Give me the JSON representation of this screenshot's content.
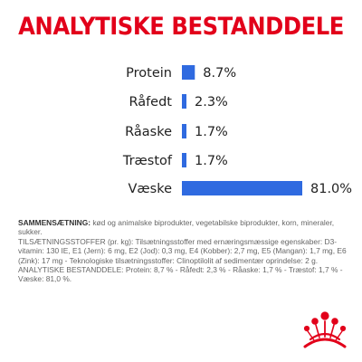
{
  "title": "ANALYTISKE BESTANDDELE",
  "chart_data": {
    "type": "bar",
    "orientation": "horizontal",
    "categories": [
      "Protein",
      "Råfedt",
      "Råaske",
      "Træstof",
      "Væske"
    ],
    "values": [
      8.7,
      2.3,
      1.7,
      1.7,
      81.0
    ],
    "value_labels": [
      "8.7%",
      "2.3%",
      "1.7%",
      "1.7%",
      "81.0%"
    ],
    "unit": "%",
    "xlim": [
      0,
      81.0
    ],
    "grid": false,
    "legend": "none",
    "bar_color": "#2f6ae0"
  },
  "composition": {
    "sammensaetning_label": "SAMMENSÆTNING:",
    "sammensaetning_text": " kød og animalske biprodukter, vegetabilske biprodukter, korn, mineraler, sukker.",
    "tilsaetning_text": "TILSÆTNINGSSTOFFER (pr. kg): Tilsætningsstoffer med ernæringsmæssige egenskaber: D3-vitamin: 130 IE, E1 (Jern): 6 mg, E2 (Jod): 0,3 mg, E4 (Kobber): 2,7 mg, E5 (Mangan): 1,7 mg, E6 (Zink): 17 mg - Teknologiske tilsætningsstoffer: Clinoptilolit af sedimentær oprindelse: 2 g.",
    "analytiske_text": "ANALYTISKE BESTANDDELE: Protein: 8,7 % - Råfedt: 2,3 % - Råaske: 1,7 % - Træstof: 1,7 % - Væske: 81,0 %."
  },
  "colors": {
    "title": "#e2001a",
    "bar": "#2f6ae0",
    "logo": "#e2001a"
  },
  "logo": {
    "icon": "royal-canin-crown-logo"
  }
}
